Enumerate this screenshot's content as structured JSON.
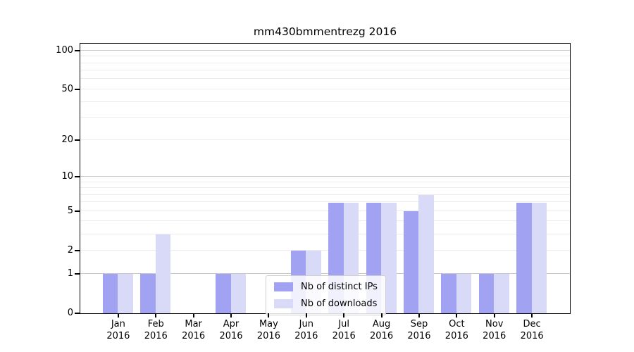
{
  "chart_data": {
    "type": "bar",
    "title": "mm430bmmentrezg 2016",
    "x_categories": [
      "Jan",
      "Feb",
      "Mar",
      "Apr",
      "May",
      "Jun",
      "Jul",
      "Aug",
      "Sep",
      "Oct",
      "Nov",
      "Dec"
    ],
    "x_year": "2016",
    "series": [
      {
        "name": "Nb of distinct IPs",
        "color": "#a2a2f2",
        "values": [
          1,
          1,
          0,
          1,
          0,
          2,
          6,
          6,
          5,
          1,
          1,
          6
        ]
      },
      {
        "name": "Nb of downloads",
        "color": "#d9d9f8",
        "values": [
          1,
          3,
          0,
          1,
          0,
          2,
          6,
          6,
          7,
          1,
          1,
          6
        ]
      }
    ],
    "y_scale": "log10(1+x)",
    "y_ticks": [
      0,
      1,
      2,
      5,
      10,
      20,
      50,
      100
    ],
    "y_major_gridlines": [
      1,
      10,
      100
    ],
    "y_minor_gridlines": [
      2,
      3,
      4,
      5,
      6,
      7,
      8,
      9,
      20,
      30,
      40,
      50,
      60,
      70,
      80,
      90
    ],
    "ylim": [
      0,
      113
    ],
    "grid": true,
    "legend_position": "lower-center",
    "colors": {
      "major_gridline": "#c9c9c9",
      "minor_gridline": "#ececec",
      "axis": "#000000",
      "background": "#ffffff"
    }
  }
}
